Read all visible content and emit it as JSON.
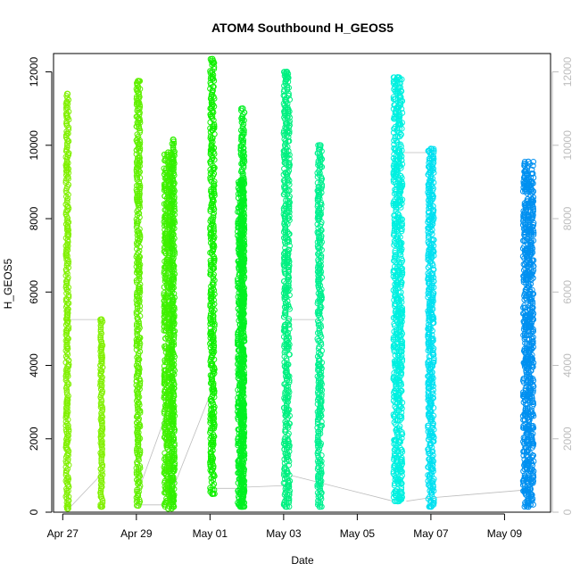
{
  "chart_data": {
    "type": "scatter",
    "title": "ATOM4 Southbound H_GEOS5",
    "xlabel": "Date",
    "ylabel": "H_GEOS5",
    "x_unit": "day",
    "xlim": [
      "2016-04-26T18:00",
      "2016-05-10T06:00"
    ],
    "ylim": [
      0,
      12500
    ],
    "x_ticks": [
      {
        "date": "2016-04-27",
        "label": "Apr 27"
      },
      {
        "date": "2016-04-29",
        "label": "Apr 29"
      },
      {
        "date": "2016-05-01",
        "label": "May 01"
      },
      {
        "date": "2016-05-03",
        "label": "May 03"
      },
      {
        "date": "2016-05-05",
        "label": "May 05"
      },
      {
        "date": "2016-05-07",
        "label": "May 07"
      },
      {
        "date": "2016-05-09",
        "label": "May 09"
      }
    ],
    "y_ticks": [
      0,
      2000,
      4000,
      6000,
      8000,
      10000,
      12000
    ],
    "right_axis_ticks": [
      0,
      2000,
      4000,
      6000,
      8000,
      10000,
      12000
    ],
    "grid": false,
    "marker": "open-circle",
    "connector_color": "#bdbdbd",
    "profiles": [
      {
        "start": "2016-04-27T02:00",
        "end": "2016-04-27T04:00",
        "min": 100,
        "max": 11400,
        "color": "#80f000"
      },
      {
        "start": "2016-04-28T00:30",
        "end": "2016-04-28T02:00",
        "min": 150,
        "max": 5250,
        "color": "#80f000"
      },
      {
        "start": "2016-04-29T00:00",
        "end": "2016-04-29T02:30",
        "min": 180,
        "max": 11750,
        "color": "#60f000"
      },
      {
        "start": "2016-04-29T18:00",
        "end": "2016-04-29T23:30",
        "min": 100,
        "max": 9800,
        "color": "#40f000"
      },
      {
        "start": "2016-04-29T23:00",
        "end": "2016-04-30T01:00",
        "min": 150,
        "max": 10150,
        "color": "#30f000"
      },
      {
        "start": "2016-05-01T00:00",
        "end": "2016-05-01T03:00",
        "min": 500,
        "max": 12350,
        "color": "#10f000"
      },
      {
        "start": "2016-05-01T18:00",
        "end": "2016-05-01T22:30",
        "min": 150,
        "max": 9050,
        "color": "#00f020"
      },
      {
        "start": "2016-05-01T20:00",
        "end": "2016-05-01T22:30",
        "min": 150,
        "max": 11000,
        "color": "#00f020"
      },
      {
        "start": "2016-05-03T00:00",
        "end": "2016-05-03T04:00",
        "min": 150,
        "max": 12000,
        "color": "#00f080"
      },
      {
        "start": "2016-05-03T22:00",
        "end": "2016-05-04T01:00",
        "min": 150,
        "max": 10000,
        "color": "#00f090"
      },
      {
        "start": "2016-05-05T23:30",
        "end": "2016-05-06T05:30",
        "min": 300,
        "max": 11850,
        "color": "#00f0e0"
      },
      {
        "start": "2016-05-06T22:00",
        "end": "2016-05-07T02:00",
        "min": 150,
        "max": 9900,
        "color": "#00e0f0"
      },
      {
        "start": "2016-05-09T12:00",
        "end": "2016-05-09T19:00",
        "min": 150,
        "max": 9550,
        "color": "#0090f0"
      }
    ],
    "connector_points": [
      [
        "2016-04-27T02:00",
        5250
      ],
      [
        "2016-04-28T00:30",
        5250
      ],
      [
        "2016-04-28T00:30",
        1000
      ],
      [
        "2016-04-27T04:00",
        100
      ],
      [
        "2016-04-29T00:00",
        200
      ],
      [
        "2016-04-30T01:00",
        200
      ],
      [
        "2016-04-29T01:00",
        550
      ],
      [
        "2016-04-30T00:00",
        3200
      ],
      [
        "2016-04-29T23:00",
        550
      ],
      [
        "2016-05-01T00:00",
        3200
      ],
      [
        "2016-05-01T02:00",
        650
      ],
      [
        "2016-05-01T22:00",
        650
      ],
      [
        "2016-05-01T22:00",
        680
      ],
      [
        "2016-05-03T04:00",
        730
      ],
      [
        "2016-05-03T02:00",
        5250
      ],
      [
        "2016-05-04T00:00",
        5250
      ],
      [
        "2016-05-03T05:00",
        1000
      ],
      [
        "2016-05-05T23:30",
        300
      ],
      [
        "2016-05-06T01:00",
        9800
      ],
      [
        "2016-05-07T02:00",
        9800
      ],
      [
        "2016-05-06T08:00",
        300
      ],
      [
        "2016-05-07T00:00",
        400
      ],
      [
        "2016-05-07T02:00",
        400
      ],
      [
        "2016-05-09T12:00",
        600
      ]
    ]
  }
}
